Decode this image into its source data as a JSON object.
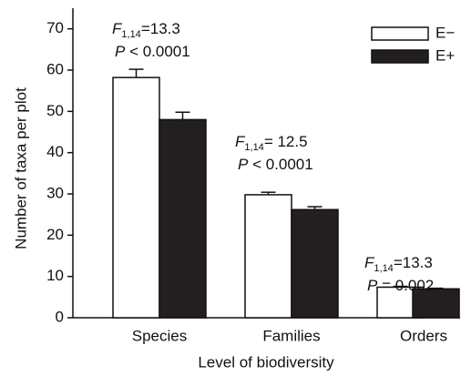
{
  "chart_data": {
    "type": "bar",
    "y_label": "Number of taxa per plot",
    "x_label": "Level of biodiversity",
    "categories": [
      "Species",
      "Families",
      "Orders"
    ],
    "series": [
      {
        "name": "E−",
        "color": "#ffffff",
        "values": [
          58.2,
          29.8,
          7.4
        ],
        "errors": [
          2.0,
          0.6,
          0.2
        ]
      },
      {
        "name": "E+",
        "color": "#231f20",
        "values": [
          48.0,
          26.2,
          7.0
        ],
        "errors": [
          1.8,
          0.7,
          0.15
        ]
      }
    ],
    "ylim": [
      0,
      75
    ],
    "yticks": [
      0,
      10,
      20,
      30,
      40,
      50,
      60,
      70
    ],
    "legend": "top-right",
    "annotations": [
      {
        "stat": "F",
        "df": "1,14",
        "f_text": "=13.3",
        "p_symbol": "P",
        "p_text": " < 0.0001"
      },
      {
        "stat": "F",
        "df": "1,14",
        "f_text": "= 12.5",
        "p_symbol": "P",
        "p_text": " < 0.0001"
      },
      {
        "stat": "F",
        "df": "1,14",
        "f_text": "=13.3",
        "p_symbol": "P",
        "p_text": " = 0.002"
      }
    ]
  }
}
